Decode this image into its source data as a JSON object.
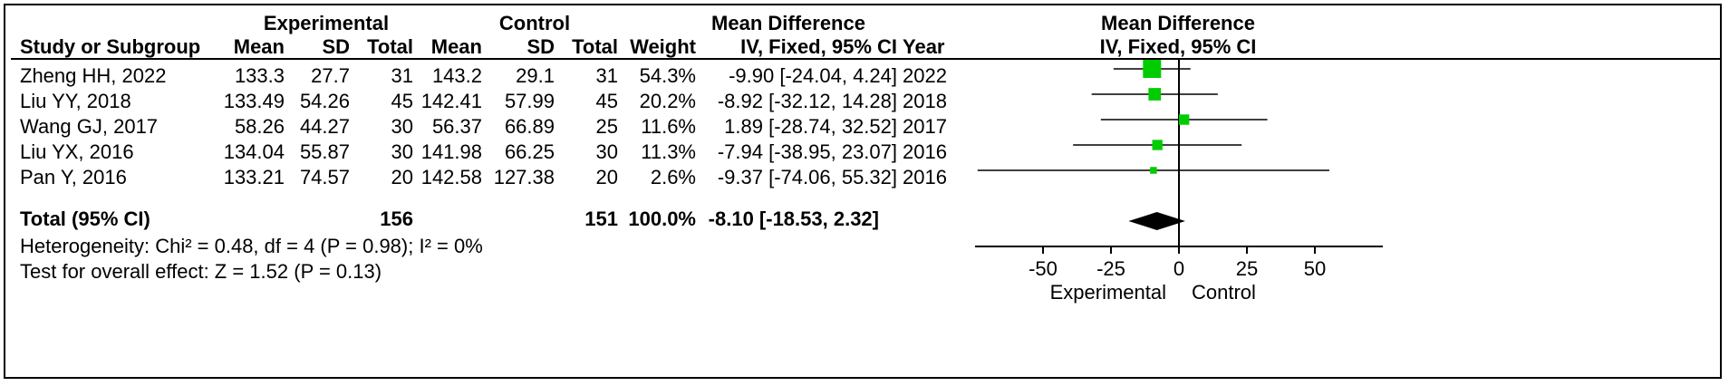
{
  "headers": {
    "experimental": "Experimental",
    "control": "Control",
    "mean_difference": "Mean Difference",
    "study_or_subgroup": "Study or Subgroup",
    "mean": "Mean",
    "sd": "SD",
    "total": "Total",
    "weight": "Weight",
    "ci_method": "IV, Fixed, 95% CI",
    "year": "Year",
    "plot_mean_difference": "Mean Difference",
    "plot_ci_method": "IV, Fixed, 95% CI"
  },
  "studies": [
    {
      "name": "Zheng HH, 2022",
      "e_mean": "133.3",
      "e_sd": "27.7",
      "e_total": "31",
      "c_mean": "143.2",
      "c_sd": "29.1",
      "c_total": "31",
      "weight": "54.3%",
      "md": "-9.90 [-24.04, 4.24]",
      "year": "2022"
    },
    {
      "name": "Liu YY, 2018",
      "e_mean": "133.49",
      "e_sd": "54.26",
      "e_total": "45",
      "c_mean": "142.41",
      "c_sd": "57.99",
      "c_total": "45",
      "weight": "20.2%",
      "md": "-8.92 [-32.12, 14.28]",
      "year": "2018"
    },
    {
      "name": "Wang GJ, 2017",
      "e_mean": "58.26",
      "e_sd": "44.27",
      "e_total": "30",
      "c_mean": "56.37",
      "c_sd": "66.89",
      "c_total": "25",
      "weight": "11.6%",
      "md": "1.89 [-28.74, 32.52]",
      "year": "2017"
    },
    {
      "name": "Liu YX, 2016",
      "e_mean": "134.04",
      "e_sd": "55.87",
      "e_total": "30",
      "c_mean": "141.98",
      "c_sd": "66.25",
      "c_total": "30",
      "weight": "11.3%",
      "md": "-7.94 [-38.95, 23.07]",
      "year": "2016"
    },
    {
      "name": "Pan Y, 2016",
      "e_mean": "133.21",
      "e_sd": "74.57",
      "e_total": "20",
      "c_mean": "142.58",
      "c_sd": "127.38",
      "c_total": "20",
      "weight": "2.6%",
      "md": "-9.37 [-74.06, 55.32]",
      "year": "2016"
    }
  ],
  "total": {
    "label": "Total (95% CI)",
    "e_total": "156",
    "c_total": "151",
    "weight": "100.0%",
    "md": "-8.10 [-18.53, 2.32]"
  },
  "heterogeneity": "Heterogeneity: Chi² = 0.48, df = 4 (P = 0.98); I² = 0%",
  "overall_effect": "Test for overall effect: Z = 1.52 (P = 0.13)",
  "chart_data": {
    "type": "forest",
    "title": "Mean Difference",
    "subtitle": "IV, Fixed, 95% CI",
    "xlim": [
      -75,
      75
    ],
    "ticks": [
      -50,
      -25,
      0,
      25,
      50
    ],
    "tick_labels": [
      "-50",
      "-25",
      "0",
      "25",
      "50"
    ],
    "favours_left": "Experimental",
    "favours_right": "Control",
    "studies": [
      {
        "name": "Zheng HH, 2022",
        "estimate": -9.9,
        "lower": -24.04,
        "upper": 4.24,
        "weight": 54.3
      },
      {
        "name": "Liu YY, 2018",
        "estimate": -8.92,
        "lower": -32.12,
        "upper": 14.28,
        "weight": 20.2
      },
      {
        "name": "Wang GJ, 2017",
        "estimate": 1.89,
        "lower": -28.74,
        "upper": 32.52,
        "weight": 11.6
      },
      {
        "name": "Liu YX, 2016",
        "estimate": -7.94,
        "lower": -38.95,
        "upper": 23.07,
        "weight": 11.3
      },
      {
        "name": "Pan Y, 2016",
        "estimate": -9.37,
        "lower": -74.06,
        "upper": 55.32,
        "weight": 2.6
      }
    ],
    "pooled": {
      "estimate": -8.1,
      "lower": -18.53,
      "upper": 2.32
    },
    "marker_color": "#00cc00",
    "diamond_color": "#000000"
  }
}
